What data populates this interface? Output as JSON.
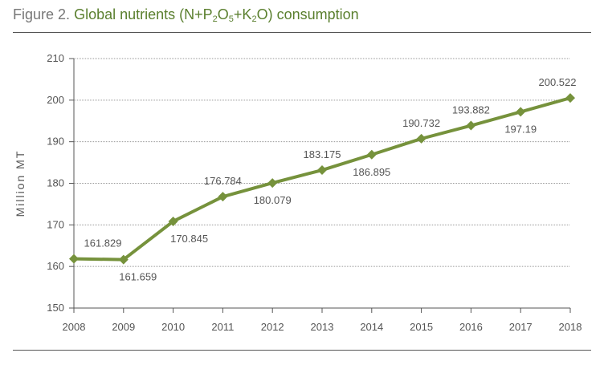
{
  "title": {
    "prefix": "Figure 2.",
    "main_before": "Global nutrients (N+P",
    "sub1": "2",
    "mid1": "O",
    "sub2": "5",
    "mid2": "+K",
    "sub3": "2",
    "main_after": "O) consumption"
  },
  "colors": {
    "line": "#76923c",
    "axis": "#555555",
    "grid": "#999999",
    "title_accent": "#5a7f2e"
  },
  "chart_data": {
    "type": "line",
    "title": "Figure 2. Global nutrients (N+P2O5+K2O) consumption",
    "xlabel": "",
    "ylabel": "Million MT",
    "ylim": [
      150,
      210
    ],
    "yticks": [
      150,
      160,
      170,
      180,
      190,
      200,
      210
    ],
    "grid": true,
    "categories": [
      "2008",
      "2009",
      "2010",
      "2011",
      "2012",
      "2013",
      "2014",
      "2015",
      "2016",
      "2017",
      "2018"
    ],
    "series": [
      {
        "values": [
          161.829,
          161.659,
          170.845,
          176.784,
          180.079,
          183.175,
          186.895,
          190.732,
          193.882,
          197.19,
          200.522
        ],
        "labels": [
          "161.829",
          "161.659",
          "170.845",
          "176.784",
          "180.079",
          "183.175",
          "186.895",
          "190.732",
          "193.882",
          "197.19",
          "200.522"
        ]
      }
    ]
  }
}
